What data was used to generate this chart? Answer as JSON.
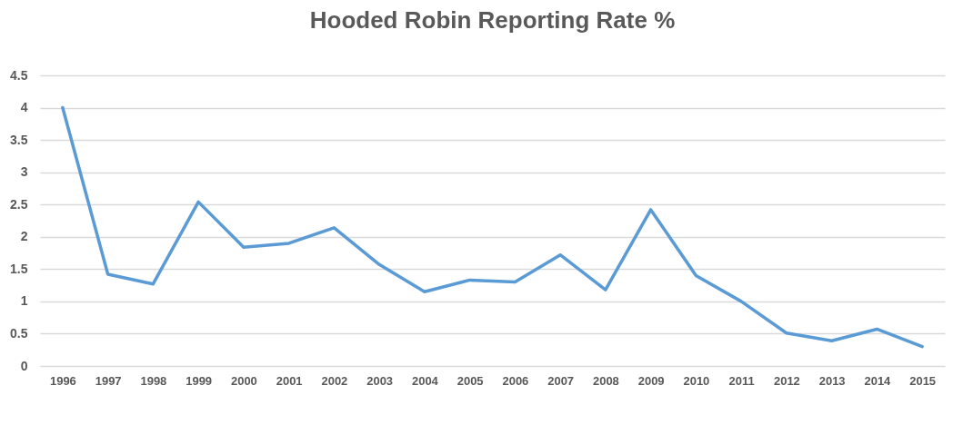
{
  "chart_data": {
    "type": "line",
    "title": "Hooded Robin Reporting Rate %",
    "categories": [
      "1996",
      "1997",
      "1998",
      "1999",
      "2000",
      "2001",
      "2002",
      "2003",
      "2004",
      "2005",
      "2006",
      "2007",
      "2008",
      "2009",
      "2010",
      "2011",
      "2012",
      "2013",
      "2014",
      "2015"
    ],
    "series": [
      {
        "color": "#5b9bd5",
        "values": [
          4.0,
          1.42,
          1.27,
          2.54,
          1.84,
          1.9,
          2.14,
          1.57,
          1.15,
          1.33,
          1.3,
          1.72,
          1.18,
          2.42,
          1.4,
          1.0,
          0.51,
          0.39,
          0.57,
          0.3
        ]
      }
    ],
    "ylim": [
      0,
      4.5
    ],
    "yticks": [
      0,
      0.5,
      1,
      1.5,
      2,
      2.5,
      3,
      3.5,
      4,
      4.5
    ],
    "grid": "y",
    "marker": "none",
    "line_style": "solid"
  }
}
